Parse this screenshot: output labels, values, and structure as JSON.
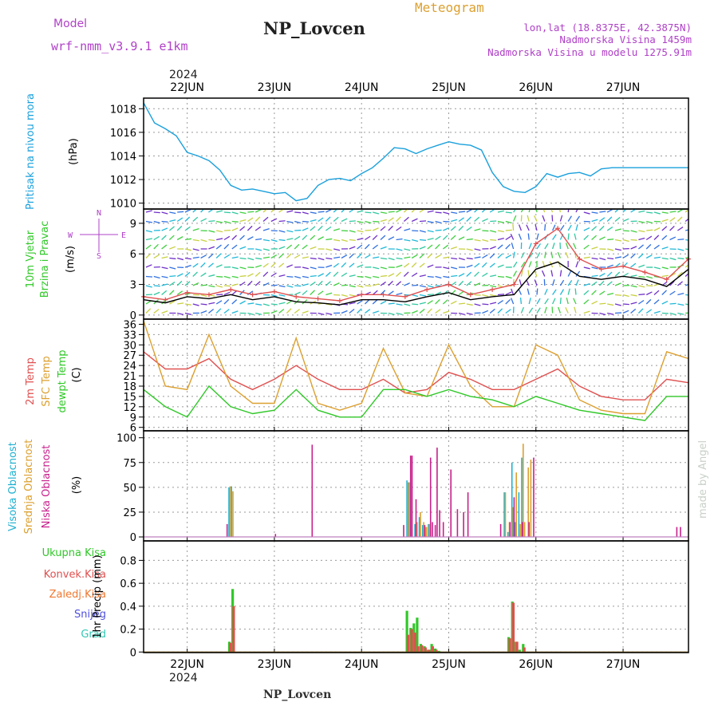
{
  "header": {
    "model_label": "Model",
    "model_name": "wrf-nmm_v3.9.1  e1km",
    "station": "NP_Lovcen",
    "meteogram_label": "Meteogram",
    "lonlat": "lon,lat (18.8375E, 42.3875N)",
    "elevation": "Nadmorska Visina 1459m",
    "model_elevation": "Nadmorska Visina u modelu 1275.91m",
    "year": "2024",
    "footer_station": "NP_Lovcen",
    "watermark": "made by Angel"
  },
  "colors": {
    "pressure": "#1aa0dc",
    "t2m": "#e05050",
    "sfc": "#dca030",
    "dew": "#30c828",
    "high": "#20b0d0",
    "mid": "#dca030",
    "low": "#c8208c",
    "total_precip": "#30c828",
    "conv_precip": "#e05050",
    "frozen_precip": "#f07830",
    "snow": "#5050e0",
    "hail": "#30c8b4",
    "wind_speed": "#000000",
    "wind_gust": "#e05050",
    "wind_label": "#b040c8"
  },
  "chart_data": [
    {
      "type": "line",
      "panel": "pressure",
      "title": "",
      "ylabel": "Pritisak na nivou mora",
      "unit": "(hPa)",
      "ylim": [
        1009.5,
        1018.9
      ],
      "yticks": [
        "1010",
        "1012",
        "1014",
        "1016",
        "1018"
      ],
      "xlim": [
        0,
        150
      ],
      "x_unit": "hours from 2024-06-21 12:00",
      "xticks": [
        "22JUN",
        "23JUN",
        "24JUN",
        "25JUN",
        "26JUN",
        "27JUN"
      ],
      "grid": true,
      "series": [
        {
          "x": [
            0,
            3,
            6,
            9,
            12,
            15,
            18,
            21,
            24,
            27,
            30,
            33,
            36,
            39,
            42,
            45,
            48,
            51,
            54,
            57,
            60,
            63,
            66,
            69,
            72,
            75,
            78,
            81,
            84,
            87,
            90,
            93,
            96,
            99,
            102,
            105,
            108,
            111,
            114,
            117,
            120,
            123,
            126,
            129,
            132,
            135,
            138,
            141,
            144,
            147,
            150
          ],
          "values": [
            1018.5,
            1016.8,
            1016.3,
            1015.7,
            1014.3,
            1014.0,
            1013.6,
            1012.8,
            1011.5,
            1011.1,
            1011.2,
            1011.0,
            1010.8,
            1010.9,
            1010.2,
            1010.4,
            1011.5,
            1012.0,
            1012.1,
            1011.9,
            1012.5,
            1013.0,
            1013.8,
            1014.7,
            1014.6,
            1014.2,
            1014.6,
            1014.9,
            1015.2,
            1015.0,
            1014.9,
            1014.5,
            1012.6,
            1011.4,
            1011.0,
            1010.9,
            1011.4,
            1012.5,
            1012.2,
            1012.5,
            1012.6,
            1012.3,
            1012.9,
            1013.0,
            1013.0,
            1013.0,
            1013.0,
            1013.0,
            1013.0,
            1013.0,
            1013.0
          ]
        }
      ]
    },
    {
      "type": "line",
      "panel": "wind",
      "title": "",
      "ylabel": [
        "10m Vjetar",
        "Brzina i Pravac"
      ],
      "unit": "(m/s)",
      "ylim": [
        -0.4,
        10.4
      ],
      "yticks": [
        "0",
        "3",
        "6",
        "9"
      ],
      "xlim": [
        0,
        150
      ],
      "compass": [
        "N",
        "W",
        "E",
        "S"
      ],
      "grid": true,
      "series": [
        {
          "name": "speed",
          "x": [
            0,
            6,
            12,
            18,
            24,
            30,
            36,
            42,
            48,
            54,
            60,
            66,
            72,
            78,
            84,
            90,
            96,
            102,
            108,
            114,
            120,
            126,
            132,
            138,
            144,
            150
          ],
          "values": [
            1.5,
            1.2,
            1.8,
            1.6,
            2.0,
            1.5,
            1.8,
            1.3,
            1.2,
            1.0,
            1.5,
            1.5,
            1.3,
            1.8,
            2.2,
            1.5,
            1.8,
            2.0,
            4.5,
            5.2,
            3.8,
            3.5,
            3.8,
            3.5,
            2.8,
            4.5
          ]
        },
        {
          "name": "gust",
          "x": [
            0,
            6,
            12,
            18,
            24,
            30,
            36,
            42,
            48,
            54,
            60,
            66,
            72,
            78,
            84,
            90,
            96,
            102,
            108,
            114,
            120,
            126,
            132,
            138,
            144,
            150
          ],
          "values": [
            1.8,
            1.5,
            2.2,
            2.0,
            2.5,
            2.0,
            2.3,
            1.8,
            1.6,
            1.4,
            2.0,
            2.0,
            1.8,
            2.5,
            3.0,
            2.0,
            2.5,
            3.0,
            7.0,
            8.5,
            5.5,
            4.5,
            4.8,
            4.2,
            3.5,
            5.5
          ]
        }
      ]
    },
    {
      "type": "line",
      "panel": "temperature",
      "title": "",
      "ylabel": [
        "2m Temp",
        "SFC Temp",
        "dewpt Temp"
      ],
      "unit": "(C)",
      "ylim": [
        5,
        37.5
      ],
      "yticks": [
        "6",
        "9",
        "12",
        "15",
        "18",
        "21",
        "24",
        "27",
        "30",
        "33",
        "36"
      ],
      "xlim": [
        0,
        150
      ],
      "grid": true,
      "series": [
        {
          "name": "2m Temp",
          "x": [
            0,
            6,
            12,
            18,
            24,
            30,
            36,
            42,
            48,
            54,
            60,
            66,
            72,
            78,
            84,
            90,
            96,
            102,
            108,
            114,
            120,
            126,
            132,
            138,
            144,
            150
          ],
          "values": [
            28,
            23,
            23,
            26,
            20,
            17,
            20,
            24,
            20,
            17,
            17,
            20,
            16,
            17,
            22,
            20,
            17,
            17,
            20,
            23,
            18,
            15,
            14,
            14,
            20,
            19
          ]
        },
        {
          "name": "SFC Temp",
          "x": [
            0,
            6,
            12,
            18,
            24,
            30,
            36,
            42,
            48,
            54,
            60,
            66,
            72,
            78,
            84,
            90,
            96,
            102,
            108,
            114,
            120,
            126,
            132,
            138,
            144,
            150
          ],
          "values": [
            37,
            18,
            17,
            33,
            18,
            13,
            13,
            32,
            13,
            11,
            13,
            29,
            16,
            15,
            30,
            18,
            12,
            12,
            30,
            27,
            14,
            11,
            10,
            10,
            28,
            26
          ]
        },
        {
          "name": "dewpt Temp",
          "x": [
            0,
            6,
            12,
            18,
            24,
            30,
            36,
            42,
            48,
            54,
            60,
            66,
            72,
            78,
            84,
            90,
            96,
            102,
            108,
            114,
            120,
            126,
            132,
            138,
            144,
            150
          ],
          "values": [
            17,
            12,
            9,
            18,
            12,
            10,
            11,
            17,
            11,
            9,
            9,
            17,
            17,
            15,
            17,
            15,
            14,
            12,
            15,
            13,
            11,
            10,
            9,
            8,
            15,
            15
          ]
        }
      ]
    },
    {
      "type": "bar",
      "panel": "cloud",
      "title": "",
      "ylabel": [
        "Visoka Oblacnost",
        "Srednja Oblacnost",
        "Niska Oblacnost"
      ],
      "unit": "(%)",
      "ylim": [
        -4,
        107
      ],
      "yticks": [
        "0",
        "25",
        "50",
        "75",
        "100"
      ],
      "xlim": [
        0,
        150
      ],
      "grid": true,
      "series": [
        {
          "name": "Visoka Oblacnost",
          "x": [
            23.5,
            24.2,
            72.5,
            73.1,
            74.7,
            75.9,
            76.8,
            77.5,
            78.4,
            99.3,
            100.3,
            101.4,
            102.3,
            103.3,
            104.1
          ],
          "values": [
            50,
            51,
            57,
            55,
            13,
            20,
            12,
            10,
            13,
            45,
            5,
            75,
            15,
            45,
            80
          ]
        },
        {
          "name": "Srednja Oblacnost",
          "x": [
            23.8,
            24.6,
            72.8,
            75.3,
            76.2,
            77.1,
            77.9,
            78.7,
            99.6,
            100.7,
            101.7,
            102.6,
            103.7,
            104.5,
            104.9,
            105.9,
            106.6
          ],
          "values": [
            51,
            46,
            55,
            15,
            25,
            15,
            10,
            13,
            45,
            15,
            30,
            65,
            13,
            94,
            15,
            70,
            78
          ]
        },
        {
          "name": "Niska Oblacnost",
          "x": [
            23.0,
            36.3,
            46.4,
            71.6,
            73.5,
            73.9,
            75.0,
            77.4,
            79.0,
            79.5,
            80.3,
            80.8,
            81.5,
            82.5,
            84.6,
            86.4,
            88.1,
            89.3,
            98.3,
            100.9,
            102.0,
            104.3,
            106.1,
            107.4,
            146.8,
            147.8
          ],
          "values": [
            13,
            3,
            93,
            12,
            82,
            82,
            38,
            12,
            80,
            15,
            12,
            90,
            27,
            15,
            68,
            28,
            25,
            45,
            13,
            15,
            40,
            15,
            15,
            80,
            10,
            10
          ]
        }
      ]
    },
    {
      "type": "bar",
      "panel": "precip",
      "title": "",
      "ylabel": [
        "Ukupna Kisa",
        "Konvek.Kisa",
        "Zaledj.Kisa",
        "Snijeg",
        "Grad",
        "1hr Precip (mm)"
      ],
      "ylim": [
        -0.005,
        0.97
      ],
      "yticks": [
        "0",
        "0.2",
        "0.4",
        "0.6",
        "0.8"
      ],
      "xlim": [
        0,
        150
      ],
      "grid": true,
      "series": [
        {
          "name": "Ukupna Kisa",
          "x": [
            23.6,
            24.5,
            72.5,
            73.5,
            74.4,
            75.3,
            76.3,
            77.3,
            78.3,
            79.3,
            80.3,
            81.3,
            100.5,
            101.5,
            102.5,
            103.5,
            104.5
          ],
          "values": [
            0.09,
            0.55,
            0.36,
            0.21,
            0.25,
            0.3,
            0.07,
            0.05,
            0.02,
            0.07,
            0.03,
            0.01,
            0.13,
            0.44,
            0.09,
            0.02,
            0.07
          ]
        },
        {
          "name": "Konvek.Kisa",
          "x": [
            23.9,
            24.8,
            72.8,
            73.8,
            74.7,
            75.6,
            76.6,
            77.6,
            78.6,
            79.6,
            80.6,
            100.8,
            101.8,
            102.8,
            104.8
          ],
          "values": [
            0.08,
            0.4,
            0.15,
            0.2,
            0.17,
            0.05,
            0.06,
            0.04,
            0.02,
            0.05,
            0.02,
            0.12,
            0.43,
            0.09,
            0.04
          ]
        }
      ]
    }
  ],
  "precip_legend": {
    "total": "Ukupna Kisa",
    "conv": "Konvek.Kisa",
    "frozen": "Zaledj.Kisa",
    "snow": "Snijeg",
    "hail": "Grad",
    "axis": "1hr Precip (mm)"
  }
}
